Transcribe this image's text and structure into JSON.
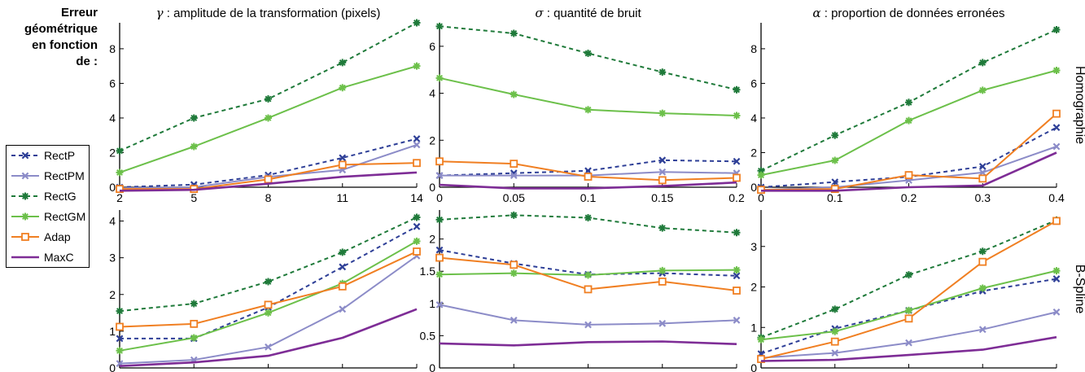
{
  "side_title": [
    "Erreur",
    "géométrique",
    "en fonction",
    "de :"
  ],
  "col_titles": [
    {
      "sym": "γ",
      "text": " : amplitude de la transformation (pixels)"
    },
    {
      "sym": "σ",
      "text": " : quantité de bruit"
    },
    {
      "sym": "α",
      "text": " : proportion de données erronées"
    }
  ],
  "row_labels": [
    "Homographie",
    "B-Spline"
  ],
  "legend": [
    {
      "name": "RectP",
      "color": "#2e3f97",
      "dash": true,
      "marker": "x"
    },
    {
      "name": "RectPM",
      "color": "#8c8cc8",
      "dash": false,
      "marker": "x"
    },
    {
      "name": "RectG",
      "color": "#1f7a3a",
      "dash": true,
      "marker": "star"
    },
    {
      "name": "RectGM",
      "color": "#6cc04a",
      "dash": false,
      "marker": "star"
    },
    {
      "name": "Adap",
      "color": "#f07f22",
      "dash": false,
      "marker": "square"
    },
    {
      "name": "MaxC",
      "color": "#7e2d96",
      "dash": false,
      "marker": "none"
    }
  ],
  "chart_data": [
    {
      "type": "line",
      "row": 0,
      "col": 0,
      "x": [
        2,
        5,
        8,
        11,
        14
      ],
      "xticks": [
        "2",
        "5",
        "8",
        "11",
        "14"
      ],
      "ylim": [
        0,
        9.5
      ],
      "yticks": [
        0,
        2,
        4,
        6,
        8
      ],
      "ytick_labels": [
        "0",
        "2",
        "4",
        "6",
        "8"
      ],
      "series": [
        {
          "name": "RectP",
          "values": [
            0.0,
            0.15,
            0.7,
            1.7,
            2.8
          ]
        },
        {
          "name": "RectPM",
          "values": [
            -0.05,
            0.0,
            0.6,
            1.0,
            2.45
          ]
        },
        {
          "name": "RectG",
          "values": [
            2.1,
            4.0,
            5.1,
            7.2,
            9.5
          ]
        },
        {
          "name": "RectGM",
          "values": [
            0.85,
            2.35,
            4.0,
            5.75,
            7.0
          ]
        },
        {
          "name": "Adap",
          "values": [
            -0.1,
            -0.1,
            0.45,
            1.3,
            1.4
          ]
        },
        {
          "name": "MaxC",
          "values": [
            -0.2,
            -0.15,
            0.2,
            0.6,
            0.85
          ]
        }
      ]
    },
    {
      "type": "line",
      "row": 0,
      "col": 1,
      "x": [
        0,
        0.05,
        0.1,
        0.15,
        0.2
      ],
      "xticks": [
        "0",
        "0.05",
        "0.1",
        "0.15",
        "0.2"
      ],
      "ylim": [
        0,
        7
      ],
      "yticks": [
        0,
        2,
        4,
        6
      ],
      "ytick_labels": [
        "0",
        "2",
        "4",
        "6"
      ],
      "series": [
        {
          "name": "RectP",
          "values": [
            0.5,
            0.6,
            0.7,
            1.15,
            1.1
          ]
        },
        {
          "name": "RectPM",
          "values": [
            0.5,
            0.5,
            0.5,
            0.65,
            0.6
          ]
        },
        {
          "name": "RectG",
          "values": [
            6.85,
            6.55,
            5.7,
            4.9,
            4.15
          ]
        },
        {
          "name": "RectGM",
          "values": [
            4.65,
            3.95,
            3.3,
            3.15,
            3.05
          ]
        },
        {
          "name": "Adap",
          "values": [
            1.1,
            1.0,
            0.45,
            0.3,
            0.4
          ]
        },
        {
          "name": "MaxC",
          "values": [
            0.1,
            -0.05,
            -0.05,
            0.05,
            0.2
          ]
        }
      ]
    },
    {
      "type": "line",
      "row": 0,
      "col": 2,
      "x": [
        0,
        0.1,
        0.2,
        0.3,
        0.4
      ],
      "xticks": [
        "0",
        "0.1",
        "0.2",
        "0.3",
        "0.4"
      ],
      "ylim": [
        0,
        9.5
      ],
      "yticks": [
        0,
        2,
        4,
        6,
        8
      ],
      "ytick_labels": [
        "0",
        "2",
        "4",
        "6",
        "8"
      ],
      "series": [
        {
          "name": "RectP",
          "values": [
            0.0,
            0.3,
            0.6,
            1.2,
            3.45
          ]
        },
        {
          "name": "RectPM",
          "values": [
            -0.15,
            0.0,
            0.4,
            0.85,
            2.35
          ]
        },
        {
          "name": "RectG",
          "values": [
            0.95,
            3.0,
            4.9,
            7.2,
            9.1
          ]
        },
        {
          "name": "RectGM",
          "values": [
            0.7,
            1.55,
            3.85,
            5.6,
            6.75
          ]
        },
        {
          "name": "Adap",
          "values": [
            -0.15,
            -0.1,
            0.7,
            0.5,
            4.25
          ]
        },
        {
          "name": "MaxC",
          "values": [
            -0.2,
            -0.2,
            0.0,
            0.1,
            2.0
          ]
        }
      ]
    },
    {
      "type": "line",
      "row": 1,
      "col": 0,
      "x": [
        2,
        5,
        8,
        11,
        14
      ],
      "xticks": [],
      "ylim": [
        0,
        4.3
      ],
      "yticks": [
        0,
        1,
        2,
        3,
        4
      ],
      "ytick_labels": [
        "0",
        "1",
        "2",
        "3",
        "4"
      ],
      "series": [
        {
          "name": "RectP",
          "values": [
            0.8,
            0.8,
            1.65,
            2.75,
            3.85
          ]
        },
        {
          "name": "RectPM",
          "values": [
            0.12,
            0.22,
            0.57,
            1.6,
            3.05
          ]
        },
        {
          "name": "RectG",
          "values": [
            1.55,
            1.75,
            2.35,
            3.15,
            4.1
          ]
        },
        {
          "name": "RectGM",
          "values": [
            0.47,
            0.82,
            1.5,
            2.3,
            3.45
          ]
        },
        {
          "name": "Adap",
          "values": [
            1.12,
            1.2,
            1.72,
            2.22,
            3.17
          ]
        },
        {
          "name": "MaxC",
          "values": [
            0.05,
            0.15,
            0.33,
            0.82,
            1.6
          ]
        }
      ]
    },
    {
      "type": "line",
      "row": 1,
      "col": 1,
      "x": [
        0,
        0.05,
        0.1,
        0.15,
        0.2
      ],
      "xticks": [],
      "ylim": [
        0,
        2.45
      ],
      "yticks": [
        0,
        0.5,
        1,
        1.5,
        2
      ],
      "ytick_labels": [
        "0",
        "0.5",
        "1",
        "1.5",
        "2"
      ],
      "series": [
        {
          "name": "RectP",
          "values": [
            1.83,
            1.62,
            1.45,
            1.47,
            1.43
          ]
        },
        {
          "name": "RectPM",
          "values": [
            0.98,
            0.74,
            0.67,
            0.69,
            0.74
          ]
        },
        {
          "name": "RectG",
          "values": [
            2.3,
            2.37,
            2.33,
            2.17,
            2.1
          ]
        },
        {
          "name": "RectGM",
          "values": [
            1.45,
            1.47,
            1.44,
            1.51,
            1.52
          ]
        },
        {
          "name": "Adap",
          "values": [
            1.71,
            1.6,
            1.22,
            1.34,
            1.2
          ]
        },
        {
          "name": "MaxC",
          "values": [
            0.38,
            0.35,
            0.4,
            0.41,
            0.37
          ]
        }
      ]
    },
    {
      "type": "line",
      "row": 1,
      "col": 2,
      "x": [
        0,
        0.1,
        0.2,
        0.3,
        0.4
      ],
      "xticks": [],
      "ylim": [
        0,
        3.9
      ],
      "yticks": [
        0,
        1,
        2,
        3
      ],
      "ytick_labels": [
        "0",
        "1",
        "2",
        "3"
      ],
      "series": [
        {
          "name": "RectP",
          "values": [
            0.35,
            0.97,
            1.42,
            1.9,
            2.2
          ]
        },
        {
          "name": "RectPM",
          "values": [
            0.25,
            0.37,
            0.62,
            0.95,
            1.38
          ]
        },
        {
          "name": "RectG",
          "values": [
            0.75,
            1.45,
            2.3,
            2.88,
            3.65
          ]
        },
        {
          "name": "RectGM",
          "values": [
            0.7,
            0.9,
            1.42,
            1.97,
            2.4
          ]
        },
        {
          "name": "Adap",
          "values": [
            0.22,
            0.65,
            1.22,
            2.62,
            3.63
          ]
        },
        {
          "name": "MaxC",
          "values": [
            0.17,
            0.2,
            0.32,
            0.45,
            0.76
          ]
        }
      ]
    }
  ]
}
